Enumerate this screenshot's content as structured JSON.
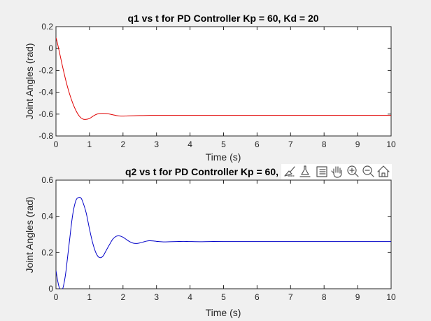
{
  "chart_data": [
    {
      "type": "line",
      "title": "q1 vs t for PD Controller Kp = 60, Kd = 20",
      "xlabel": "Time (s)",
      "ylabel": "Joint Angles (rad)",
      "xlim": [
        0,
        10
      ],
      "ylim": [
        -0.8,
        0.2
      ],
      "xticks": [
        0,
        1,
        2,
        3,
        4,
        5,
        6,
        7,
        8,
        9,
        10
      ],
      "xtick_labels": [
        "0",
        "1",
        "2",
        "3",
        "4",
        "5",
        "6",
        "7",
        "8",
        "9",
        "10"
      ],
      "yticks": [
        -0.8,
        -0.6,
        -0.4,
        -0.2,
        0,
        0.2
      ],
      "ytick_labels": [
        "-0.8",
        "-0.6",
        "-0.4",
        "-0.2",
        "0",
        "0.2"
      ],
      "grid": false,
      "color": "#e00000",
      "series": [
        {
          "x": [
            0,
            0.05,
            0.1,
            0.15,
            0.2,
            0.3,
            0.4,
            0.5,
            0.6,
            0.7,
            0.8,
            0.9,
            1.0,
            1.1,
            1.2,
            1.3,
            1.4,
            1.5,
            1.6,
            1.7,
            1.8,
            1.9,
            2.0,
            2.1,
            2.2,
            2.4,
            2.6,
            2.8,
            3.0,
            3.2,
            3.5,
            4.0,
            5.0,
            6.0,
            7.0,
            8.0,
            9.0,
            10.0
          ],
          "y": [
            0.1,
            0.04,
            -0.03,
            -0.1,
            -0.17,
            -0.3,
            -0.41,
            -0.5,
            -0.57,
            -0.62,
            -0.645,
            -0.648,
            -0.64,
            -0.62,
            -0.603,
            -0.595,
            -0.593,
            -0.595,
            -0.6,
            -0.607,
            -0.613,
            -0.617,
            -0.618,
            -0.617,
            -0.616,
            -0.614,
            -0.613,
            -0.612,
            -0.612,
            -0.612,
            -0.612,
            -0.612,
            -0.612,
            -0.612,
            -0.612,
            -0.612,
            -0.612,
            -0.612
          ]
        }
      ]
    },
    {
      "type": "line",
      "title": "q2 vs t for PD Controller Kp = 60,",
      "xlabel": "Time (s)",
      "ylabel": "Joint Angles (rad)",
      "xlim": [
        0,
        10
      ],
      "ylim": [
        0,
        0.6
      ],
      "xticks": [
        0,
        1,
        2,
        3,
        4,
        5,
        6,
        7,
        8,
        9,
        10
      ],
      "xtick_labels": [
        "0",
        "1",
        "2",
        "3",
        "4",
        "5",
        "6",
        "7",
        "8",
        "9",
        "10"
      ],
      "yticks": [
        0,
        0.2,
        0.4,
        0.6
      ],
      "ytick_labels": [
        "0",
        "0.2",
        "0.4",
        "0.6"
      ],
      "grid": false,
      "color": "#0000c8",
      "series": [
        {
          "x": [
            0,
            0.05,
            0.1,
            0.15,
            0.2,
            0.25,
            0.3,
            0.4,
            0.5,
            0.6,
            0.7,
            0.75,
            0.8,
            0.9,
            1.0,
            1.1,
            1.2,
            1.3,
            1.4,
            1.5,
            1.6,
            1.7,
            1.8,
            1.9,
            2.0,
            2.1,
            2.2,
            2.3,
            2.4,
            2.5,
            2.6,
            2.7,
            2.8,
            2.9,
            3.0,
            3.2,
            3.4,
            3.6,
            3.8,
            4.0,
            4.3,
            4.6,
            5.0,
            6.0,
            7.0,
            8.0,
            9.0,
            10.0
          ],
          "y": [
            0.1,
            0.045,
            0.005,
            -0.01,
            0.0,
            0.04,
            0.1,
            0.26,
            0.41,
            0.49,
            0.505,
            0.5,
            0.48,
            0.42,
            0.33,
            0.25,
            0.195,
            0.172,
            0.18,
            0.212,
            0.245,
            0.275,
            0.29,
            0.292,
            0.285,
            0.272,
            0.26,
            0.252,
            0.25,
            0.253,
            0.258,
            0.263,
            0.265,
            0.264,
            0.262,
            0.259,
            0.26,
            0.261,
            0.262,
            0.261,
            0.26,
            0.261,
            0.261,
            0.261,
            0.261,
            0.261,
            0.261,
            0.261
          ]
        }
      ]
    }
  ],
  "toolbar": {
    "icons": [
      "brush-icon",
      "data-tip-icon",
      "legend-icon",
      "pan-icon",
      "zoom-in-icon",
      "zoom-out-icon",
      "home-icon"
    ]
  }
}
